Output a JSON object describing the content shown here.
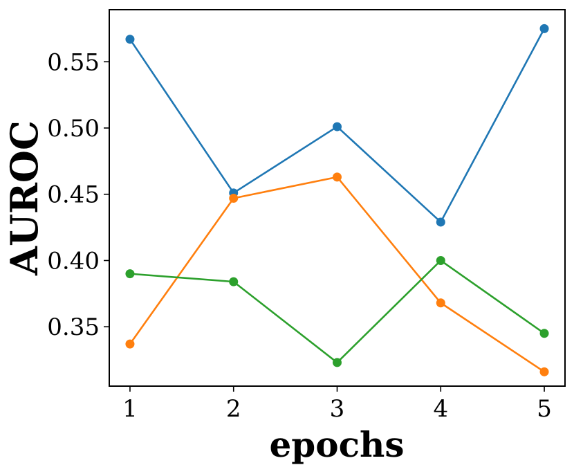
{
  "chart_data": {
    "type": "line",
    "title": "",
    "xlabel": "epochs",
    "ylabel": "AUROC",
    "x": [
      1,
      2,
      3,
      4,
      5
    ],
    "xticks": [
      "1",
      "2",
      "3",
      "4",
      "5"
    ],
    "yticks": [
      "0.35",
      "0.40",
      "0.45",
      "0.50",
      "0.55"
    ],
    "ytick_values": [
      0.35,
      0.4,
      0.45,
      0.5,
      0.55
    ],
    "xlim": [
      0.8,
      5.2
    ],
    "ylim": [
      0.3052,
      0.5893
    ],
    "grid": false,
    "series": [
      {
        "color": "#1f77b4",
        "values": [
          0.567,
          0.451,
          0.501,
          0.429,
          0.575
        ]
      },
      {
        "color": "#ff7f0e",
        "values": [
          0.337,
          0.447,
          0.463,
          0.368,
          0.316
        ]
      },
      {
        "color": "#2ca02c",
        "values": [
          0.39,
          0.384,
          0.323,
          0.4,
          0.345
        ]
      }
    ]
  }
}
